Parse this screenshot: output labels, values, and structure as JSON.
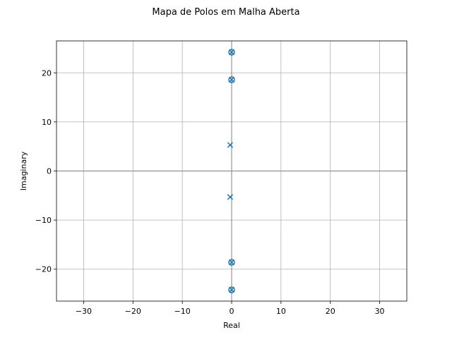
{
  "chart_data": {
    "type": "scatter",
    "title": "Mapa de Polos em Malha Aberta",
    "xlabel": "Real",
    "ylabel": "Imaginary",
    "xlim": [
      -35.5,
      35.5
    ],
    "ylim": [
      -26.5,
      26.5
    ],
    "xticks": [
      -30,
      -20,
      -10,
      0,
      10,
      20,
      30
    ],
    "xtick_labels": [
      "−30",
      "−20",
      "−10",
      "0",
      "10",
      "20",
      "30"
    ],
    "yticks": [
      -20,
      -10,
      0,
      10,
      20
    ],
    "ytick_labels": [
      "−20",
      "−10",
      "0",
      "10",
      "20"
    ],
    "grid": true,
    "color": "#1f77b4",
    "series": [
      {
        "marker": "x",
        "points": [
          {
            "x": 0.0,
            "y": 24.2
          },
          {
            "x": 0.0,
            "y": 18.6
          },
          {
            "x": -0.3,
            "y": 5.3
          },
          {
            "x": -0.3,
            "y": -5.3
          },
          {
            "x": 0.0,
            "y": -18.6
          },
          {
            "x": 0.0,
            "y": -24.2
          }
        ]
      },
      {
        "marker": "o",
        "points": [
          {
            "x": 0.0,
            "y": 24.2
          },
          {
            "x": 0.0,
            "y": 18.6
          },
          {
            "x": 0.0,
            "y": -18.6
          },
          {
            "x": 0.0,
            "y": -24.2
          }
        ]
      }
    ]
  }
}
